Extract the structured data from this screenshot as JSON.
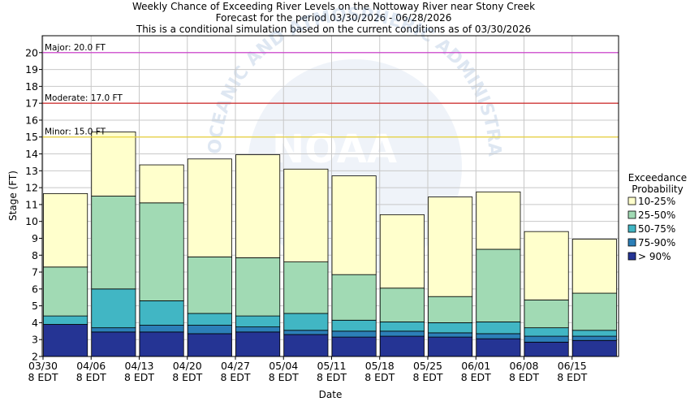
{
  "chart_data": {
    "type": "bar",
    "title_lines": [
      "Weekly Chance of Exceeding River Levels on the Nottoway River near Stony Creek",
      "Forecast for the period 03/30/2026 - 06/28/2026",
      "This is a conditional simulation based on the current conditions as of 03/30/2026"
    ],
    "xlabel": "Date",
    "ylabel": "Stage (FT)",
    "ylim": [
      2,
      21
    ],
    "yticks": [
      2,
      3,
      4,
      5,
      6,
      7,
      8,
      9,
      10,
      11,
      12,
      13,
      14,
      15,
      16,
      17,
      18,
      19,
      20
    ],
    "ytick_labels": [
      "2",
      "3",
      "4",
      "5",
      "6",
      "7",
      "8",
      "9",
      "10",
      "11",
      "12",
      "13",
      "14",
      "15",
      "16",
      "17",
      "18",
      "19",
      "20"
    ],
    "xtick_labels": [
      {
        "date": "03/30",
        "time": "8 EDT"
      },
      {
        "date": "04/06",
        "time": "8 EDT"
      },
      {
        "date": "04/13",
        "time": "8 EDT"
      },
      {
        "date": "04/20",
        "time": "8 EDT"
      },
      {
        "date": "04/27",
        "time": "8 EDT"
      },
      {
        "date": "05/04",
        "time": "8 EDT"
      },
      {
        "date": "05/11",
        "time": "8 EDT"
      },
      {
        "date": "05/18",
        "time": "8 EDT"
      },
      {
        "date": "05/25",
        "time": "8 EDT"
      },
      {
        "date": "06/01",
        "time": "8 EDT"
      },
      {
        "date": "06/08",
        "time": "8 EDT"
      },
      {
        "date": "06/15",
        "time": "8 EDT"
      }
    ],
    "flood_levels": [
      {
        "label": "Major: 20.0 FT",
        "value": 20.0,
        "color": "#cc33cc"
      },
      {
        "label": "Moderate: 17.0 FT",
        "value": 17.0,
        "color": "#cc2222"
      },
      {
        "label": "Minor: 15.0 FT",
        "value": 15.0,
        "color": "#e8d23a"
      }
    ],
    "legend_title_lines": [
      "Exceedance",
      "Probability"
    ],
    "legend_position": "right",
    "series": [
      {
        "name": "10-25%",
        "color": "#ffffcc"
      },
      {
        "name": "25-50%",
        "color": "#a1dab4"
      },
      {
        "name": "50-75%",
        "color": "#41b6c4"
      },
      {
        "name": "75-90%",
        "color": "#2c7fb8"
      },
      {
        "name": "> 90%",
        "color": "#253494"
      }
    ],
    "weeks": [
      {
        "levels": [
          2.0,
          3.9,
          3.9,
          4.4,
          7.3,
          11.65
        ]
      },
      {
        "levels": [
          2.0,
          3.45,
          3.7,
          6.0,
          11.5,
          15.3
        ]
      },
      {
        "levels": [
          2.0,
          3.45,
          3.85,
          5.3,
          11.1,
          13.35
        ]
      },
      {
        "levels": [
          2.0,
          3.35,
          3.85,
          4.55,
          7.9,
          13.7
        ]
      },
      {
        "levels": [
          2.0,
          3.45,
          3.75,
          4.4,
          7.85,
          13.95
        ]
      },
      {
        "levels": [
          2.0,
          3.3,
          3.55,
          4.55,
          7.6,
          13.1
        ]
      },
      {
        "levels": [
          2.0,
          3.15,
          3.5,
          4.15,
          6.85,
          12.7
        ]
      },
      {
        "levels": [
          2.0,
          3.2,
          3.5,
          4.05,
          6.05,
          10.4
        ]
      },
      {
        "levels": [
          2.0,
          3.15,
          3.4,
          4.0,
          5.55,
          11.45
        ]
      },
      {
        "levels": [
          2.0,
          3.05,
          3.35,
          4.05,
          8.35,
          11.75
        ]
      },
      {
        "levels": [
          2.0,
          2.85,
          3.2,
          3.7,
          5.35,
          9.4
        ]
      },
      {
        "levels": [
          2.0,
          2.95,
          3.2,
          3.55,
          5.75,
          8.95
        ]
      }
    ],
    "grid": true,
    "watermark": {
      "logo_text": "NOAA",
      "arc_text": "OCEANIC AND ATMOSPHERIC ADMINISTRATION"
    }
  }
}
